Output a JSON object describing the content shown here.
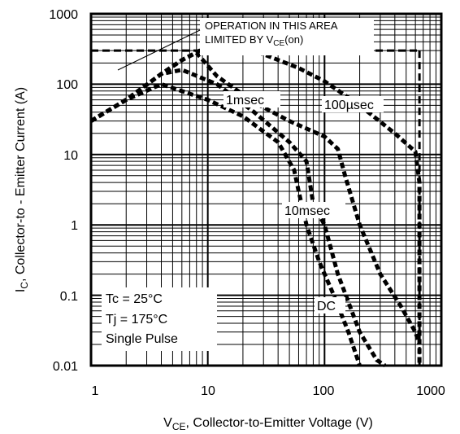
{
  "chart_data": {
    "type": "line",
    "xscale": "log",
    "yscale": "log",
    "xlim": [
      1,
      1000
    ],
    "ylim": [
      0.01,
      1000
    ],
    "x_ticks": [
      "1",
      "10",
      "100",
      "1000"
    ],
    "y_ticks": [
      "1000",
      "100",
      "10",
      "1",
      "0.1",
      "0.01"
    ],
    "xlabel": "VCE, Collector-to-Emitter Voltage (V)",
    "xlabel_parts": {
      "main": "V",
      "sub": "CE",
      "rest": ", Collector-to-Emitter Voltage (V)"
    },
    "ylabel": "IC, Collector-to-Emitter Current (A)",
    "ylabel_parts": {
      "main": "I",
      "sub": "C",
      "rest": ",  Collector-to - Emitter Current (A)"
    },
    "grid": true,
    "annotation": {
      "line1": "OPERATION IN THIS AREA",
      "line2": "LIMITED BY V",
      "line2_sub": "CE",
      "line2_suffix": "(on)"
    },
    "conditions": [
      "Tc = 25°C",
      "Tj = 175°C",
      "Single Pulse"
    ],
    "limit_lines": {
      "current_A": 300,
      "voltage_V": 650
    },
    "series": [
      {
        "name": "100µsec",
        "x": [
          1,
          2,
          4,
          6,
          8.5,
          25,
          60,
          100,
          200,
          400,
          600,
          650,
          650
        ],
        "y": [
          30,
          60,
          140,
          220,
          300,
          300,
          170,
          110,
          50,
          20,
          11,
          4,
          0.01
        ]
      },
      {
        "name": "1msec",
        "x": [
          1,
          2,
          4,
          6,
          8,
          12,
          25,
          50,
          100,
          130,
          150,
          200,
          300,
          450,
          600,
          650
        ],
        "y": [
          30,
          60,
          140,
          220,
          280,
          130,
          55,
          30,
          18,
          12,
          5,
          1,
          0.2,
          0.07,
          0.03,
          0.02
        ]
      },
      {
        "name": "10msec",
        "x": [
          1,
          2,
          4,
          6,
          12,
          25,
          50,
          70,
          80,
          100,
          130,
          200,
          280,
          330
        ],
        "y": [
          30,
          60,
          140,
          160,
          100,
          40,
          15,
          8,
          2,
          1,
          0.2,
          0.03,
          0.012,
          0.01
        ]
      },
      {
        "name": "DC",
        "x": [
          1,
          2,
          4,
          10,
          20,
          40,
          55,
          60,
          70,
          90,
          120,
          160,
          200
        ],
        "y": [
          30,
          60,
          100,
          60,
          35,
          15,
          6,
          3,
          1,
          0.3,
          0.1,
          0.03,
          0.01
        ]
      }
    ]
  }
}
